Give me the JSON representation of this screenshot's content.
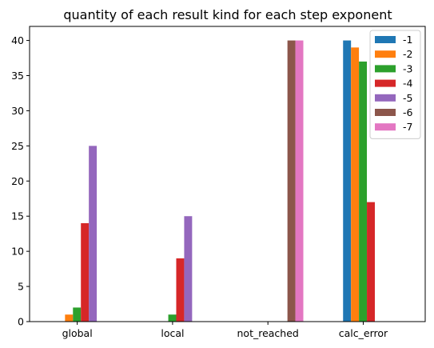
{
  "chart_data": {
    "type": "bar",
    "title": "quantity of each result kind for each step exponent",
    "xlabel": "",
    "ylabel": "",
    "categories": [
      "global",
      "local",
      "not_reached",
      "calc_error"
    ],
    "ylim": [
      0,
      42
    ],
    "yticks": [
      0,
      5,
      10,
      15,
      20,
      25,
      30,
      35,
      40
    ],
    "grid": false,
    "legend_position": "top-right",
    "series": [
      {
        "name": "-1",
        "color": "#1f77b4",
        "values": [
          0,
          0,
          0,
          40
        ]
      },
      {
        "name": "-2",
        "color": "#ff7f0e",
        "values": [
          1,
          0,
          0,
          39
        ]
      },
      {
        "name": "-3",
        "color": "#2ca02c",
        "values": [
          2,
          1,
          0,
          37
        ]
      },
      {
        "name": "-4",
        "color": "#d62728",
        "values": [
          14,
          9,
          0,
          17
        ]
      },
      {
        "name": "-5",
        "color": "#9467bd",
        "values": [
          25,
          15,
          0,
          0
        ]
      },
      {
        "name": "-6",
        "color": "#8c564b",
        "values": [
          0,
          0,
          40,
          0
        ]
      },
      {
        "name": "-7",
        "color": "#e377c2",
        "values": [
          0,
          0,
          40,
          0
        ]
      }
    ]
  }
}
